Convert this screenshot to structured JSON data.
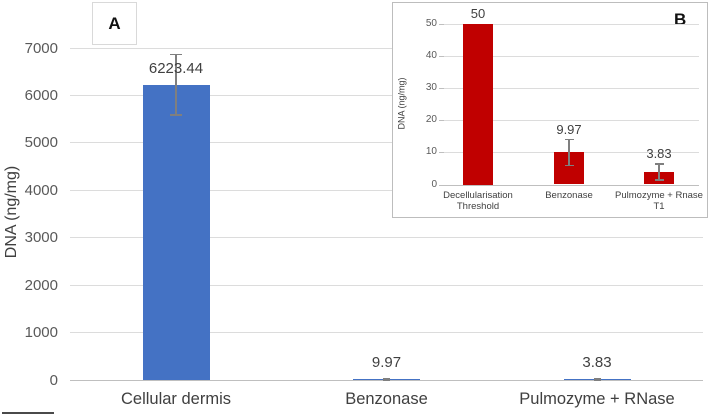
{
  "figure": {
    "panel_a_label": "A",
    "panel_b_label": "B"
  },
  "colors": {
    "bar_blue": "#4472C4",
    "bar_red": "#C00000",
    "error_bar": "#7F7F7F",
    "gridline": "#DCDCDC",
    "axis_line": "#BFBFBF",
    "tick_text": "#595959",
    "label_text": "#404040",
    "inset_border": "#BDBDBD"
  },
  "chart_data": [
    {
      "id": "panel-a",
      "panel": "A",
      "type": "bar",
      "title": "",
      "xlabel": "",
      "ylabel": "DNA (ng/mg)",
      "ylim": [
        0,
        7000
      ],
      "ytick_step": 1000,
      "grid": true,
      "legend": "none",
      "bar_color": "#4472C4",
      "categories": [
        "Cellular dermis",
        "Benzonase",
        "Pulmozyme + RNase"
      ],
      "values": [
        6223.44,
        9.97,
        3.83
      ],
      "value_labels": [
        "6223.44",
        "9.97",
        "3.83"
      ],
      "error_bars": [
        640,
        4,
        2.5
      ]
    },
    {
      "id": "panel-b-inset",
      "panel": "B",
      "type": "bar",
      "title": "",
      "xlabel": "",
      "ylabel": "DNA (ng/mg)",
      "ylim": [
        0,
        50
      ],
      "ytick_step": 10,
      "grid": true,
      "legend": "none",
      "bar_color": "#C00000",
      "categories": [
        "Decellularisation Threshold",
        "Benzonase",
        "Pulmozyme + Rnase T1"
      ],
      "categories_display": [
        "Decellularisation\nThreshold",
        "Benzonase",
        "Pulmozyme + Rnase\nT1"
      ],
      "values": [
        50,
        9.97,
        3.83
      ],
      "value_labels": [
        "50",
        "9.97",
        "3.83"
      ],
      "error_bars": [
        null,
        4,
        2.5
      ]
    }
  ]
}
